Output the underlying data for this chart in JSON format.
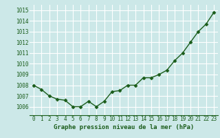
{
  "x": [
    0,
    1,
    2,
    3,
    4,
    5,
    6,
    7,
    8,
    9,
    10,
    11,
    12,
    13,
    14,
    15,
    16,
    17,
    18,
    19,
    20,
    21,
    22,
    23
  ],
  "y": [
    1008.0,
    1007.6,
    1007.0,
    1006.7,
    1006.6,
    1006.0,
    1006.0,
    1006.5,
    1006.0,
    1006.5,
    1007.4,
    1007.5,
    1008.0,
    1008.0,
    1008.7,
    1008.7,
    1009.0,
    1009.4,
    1010.3,
    1011.0,
    1012.0,
    1013.0,
    1013.7,
    1014.8
  ],
  "line_color": "#1a5c1a",
  "marker": "D",
  "marker_size": 2.5,
  "linewidth": 1.0,
  "bg_color": "#cce8e8",
  "grid_color": "#ffffff",
  "xlabel": "Graphe pression niveau de la mer (hPa)",
  "xlabel_color": "#1a5c1a",
  "xlabel_fontsize": 6.5,
  "tick_color": "#1a5c1a",
  "tick_fontsize": 5.5,
  "ylim": [
    1005.2,
    1015.5
  ],
  "yticks": [
    1006,
    1007,
    1008,
    1009,
    1010,
    1011,
    1012,
    1013,
    1014,
    1015
  ],
  "xlim": [
    -0.5,
    23.5
  ],
  "xticks": [
    0,
    1,
    2,
    3,
    4,
    5,
    6,
    7,
    8,
    9,
    10,
    11,
    12,
    13,
    14,
    15,
    16,
    17,
    18,
    19,
    20,
    21,
    22,
    23
  ]
}
